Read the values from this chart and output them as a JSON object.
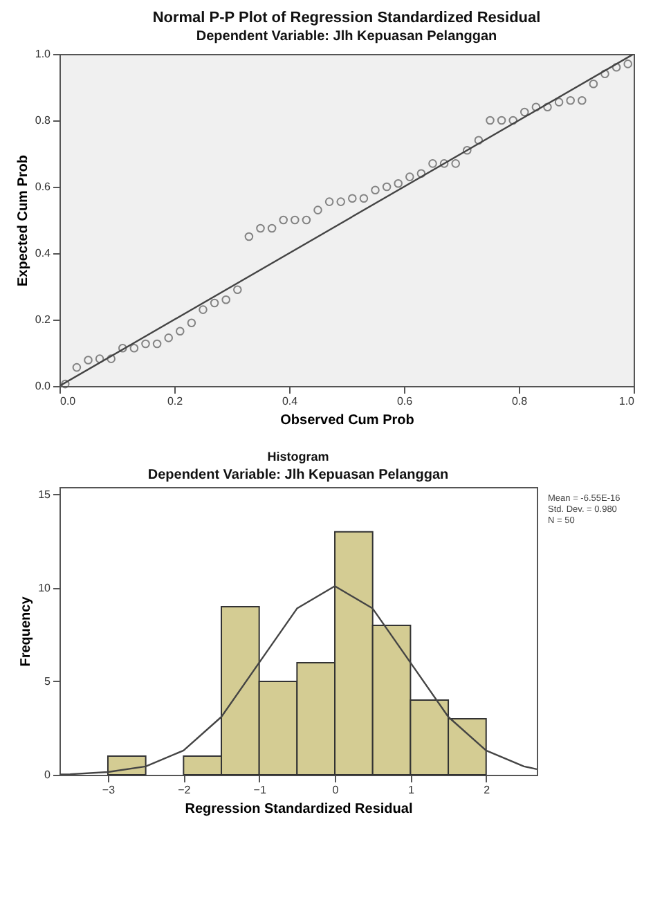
{
  "chart_data": [
    {
      "type": "scatter",
      "title": "Normal P-P Plot of Regression Standardized Residual",
      "subtitle": "Dependent Variable: Jlh Kepuasan Pelanggan",
      "xlabel": "Observed Cum Prob",
      "ylabel": "Expected Cum Prob",
      "xlim": [
        0,
        1
      ],
      "ylim": [
        0,
        1
      ],
      "xticks": [
        {
          "value": 0,
          "label": "0.0"
        },
        0.2,
        0.4,
        0.6,
        0.8,
        {
          "value": 1,
          "label": "1.0"
        }
      ],
      "yticks": [
        {
          "value": 0,
          "label": "0.0"
        },
        0.2,
        0.4,
        0.6,
        0.8,
        {
          "value": 1,
          "label": "1.0"
        }
      ],
      "series": [
        {
          "marker": "circle",
          "color": "#555555",
          "x": [
            0.01,
            0.03,
            0.05,
            0.07,
            0.09,
            0.11,
            0.13,
            0.15,
            0.17,
            0.19,
            0.21,
            0.23,
            0.25,
            0.27,
            0.29,
            0.31,
            0.33,
            0.35,
            0.37,
            0.39,
            0.41,
            0.43,
            0.45,
            0.47,
            0.49,
            0.51,
            0.53,
            0.55,
            0.57,
            0.59,
            0.61,
            0.63,
            0.65,
            0.67,
            0.69,
            0.71,
            0.73,
            0.75,
            0.77,
            0.79,
            0.81,
            0.83,
            0.85,
            0.87,
            0.89,
            0.91,
            0.93,
            0.95,
            0.97,
            0.99
          ],
          "values": [
            0.006,
            0.056,
            0.078,
            0.082,
            0.082,
            0.114,
            0.114,
            0.127,
            0.127,
            0.145,
            0.165,
            0.19,
            0.23,
            0.25,
            0.26,
            0.29,
            0.45,
            0.475,
            0.475,
            0.5,
            0.5,
            0.5,
            0.53,
            0.555,
            0.555,
            0.565,
            0.565,
            0.59,
            0.6,
            0.61,
            0.63,
            0.64,
            0.67,
            0.67,
            0.67,
            0.71,
            0.74,
            0.8,
            0.8,
            0.8,
            0.825,
            0.84,
            0.84,
            0.855,
            0.86,
            0.86,
            0.91,
            0.94,
            0.96,
            0.97
          ]
        },
        {
          "type": "line",
          "color": "#444444",
          "x": [
            0,
            1
          ],
          "values": [
            0,
            1
          ]
        }
      ]
    },
    {
      "type": "histogram",
      "title": "Histogram",
      "subtitle": "Dependent Variable: Jlh Kepuasan Pelanggan",
      "xlabel": "Regression Standardized Residual",
      "ylabel": "Frequency",
      "xlim": [
        -3.64,
        2.67
      ],
      "ylim": [
        0,
        15.4
      ],
      "xticks": [
        -3,
        -2,
        -1,
        0,
        1,
        2
      ],
      "yticks": [
        0,
        5,
        10,
        15
      ],
      "bins": [
        -3,
        -2.5,
        -2,
        -1.5,
        -1,
        -0.5,
        0,
        0.5,
        1,
        1.5,
        2
      ],
      "values": [
        1,
        0,
        1,
        9,
        5,
        6,
        13,
        8,
        4,
        3
      ],
      "color": "#d4cc93",
      "annotations": [
        "Mean = -6.55E-16",
        "Std. Dev. = 0.980",
        "N = 50"
      ],
      "series": [
        {
          "type": "line",
          "color": "#444444",
          "x": [
            -3.64,
            -3.5,
            -3,
            -2.5,
            -2,
            -1.5,
            -1,
            -0.5,
            0,
            0.5,
            1,
            1.5,
            2,
            2.5,
            2.67
          ],
          "values": [
            0.02,
            0.03,
            0.15,
            0.45,
            1.3,
            3.1,
            6.0,
            8.9,
            10.1,
            8.9,
            6.0,
            3.1,
            1.3,
            0.45,
            0.3
          ]
        }
      ]
    }
  ]
}
